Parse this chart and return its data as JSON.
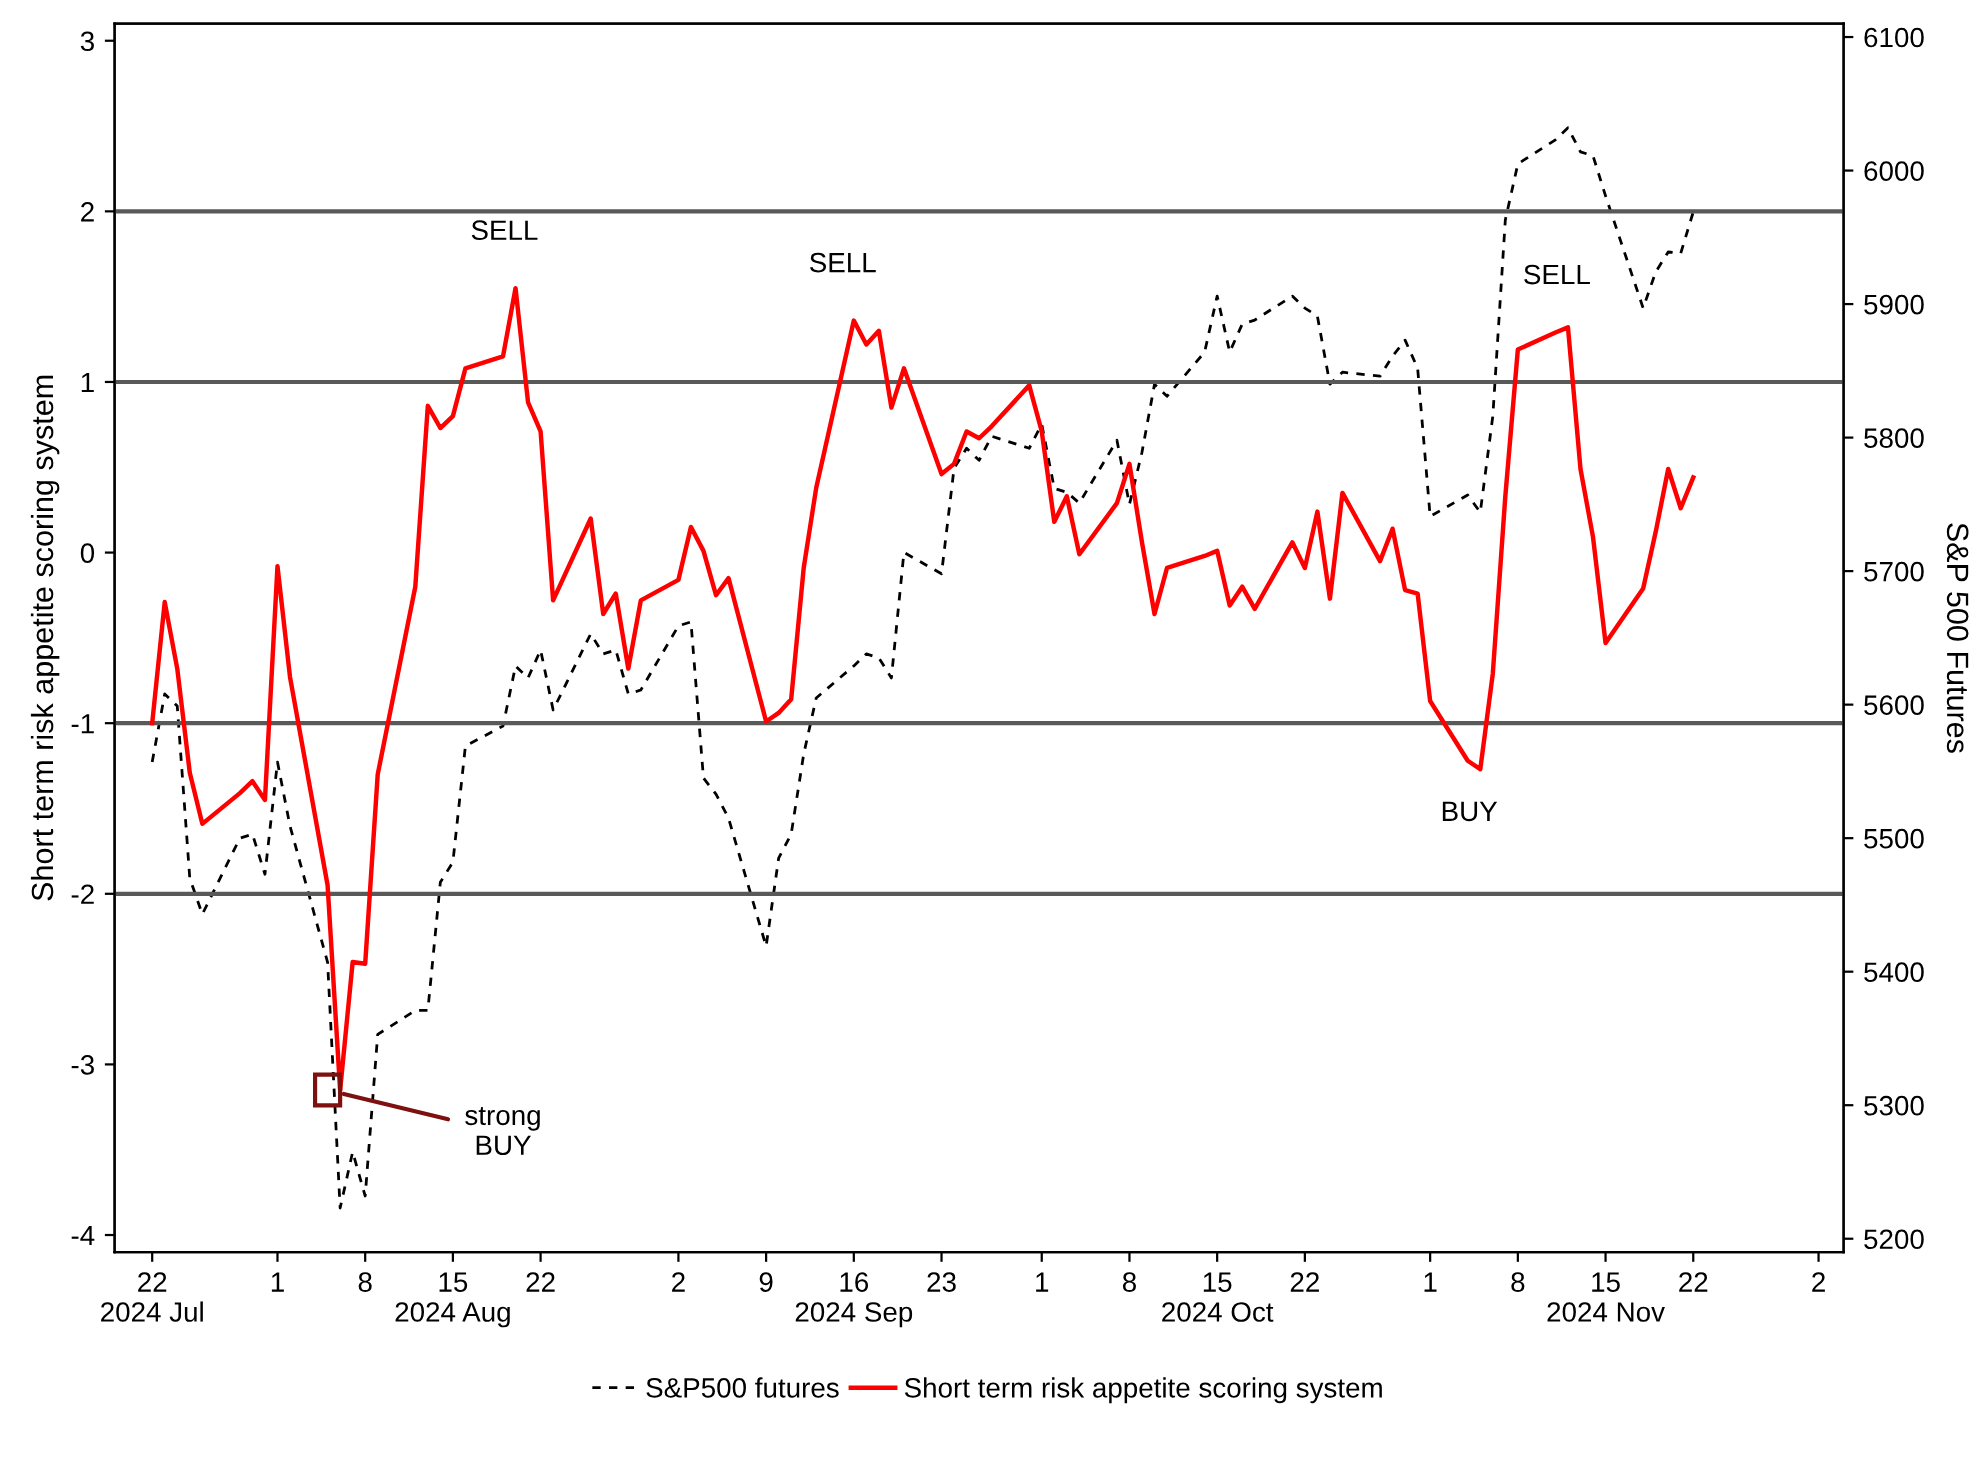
{
  "chart_data": {
    "type": "line",
    "ylabel": "Short term risk appetite scoring system",
    "y2label": "S&P 500 Futures",
    "x": [
      "2024-07-22",
      "2024-07-23",
      "2024-07-24",
      "2024-07-25",
      "2024-07-26",
      "2024-07-29",
      "2024-07-30",
      "2024-07-31",
      "2024-08-01",
      "2024-08-02",
      "2024-08-05",
      "2024-08-06",
      "2024-08-07",
      "2024-08-08",
      "2024-08-09",
      "2024-08-12",
      "2024-08-13",
      "2024-08-14",
      "2024-08-15",
      "2024-08-16",
      "2024-08-19",
      "2024-08-20",
      "2024-08-21",
      "2024-08-22",
      "2024-08-23",
      "2024-08-26",
      "2024-08-27",
      "2024-08-28",
      "2024-08-29",
      "2024-08-30",
      "2024-09-02",
      "2024-09-03",
      "2024-09-04",
      "2024-09-05",
      "2024-09-06",
      "2024-09-09",
      "2024-09-10",
      "2024-09-11",
      "2024-09-12",
      "2024-09-13",
      "2024-09-16",
      "2024-09-17",
      "2024-09-18",
      "2024-09-19",
      "2024-09-20",
      "2024-09-23",
      "2024-09-24",
      "2024-09-25",
      "2024-09-26",
      "2024-09-27",
      "2024-09-30",
      "2024-10-01",
      "2024-10-02",
      "2024-10-03",
      "2024-10-04",
      "2024-10-07",
      "2024-10-08",
      "2024-10-09",
      "2024-10-10",
      "2024-10-11",
      "2024-10-14",
      "2024-10-15",
      "2024-10-16",
      "2024-10-17",
      "2024-10-18",
      "2024-10-21",
      "2024-10-22",
      "2024-10-23",
      "2024-10-24",
      "2024-10-25",
      "2024-10-28",
      "2024-10-29",
      "2024-10-30",
      "2024-10-31",
      "2024-11-01",
      "2024-11-04",
      "2024-11-05",
      "2024-11-06",
      "2024-11-07",
      "2024-11-08",
      "2024-11-11",
      "2024-11-12",
      "2024-11-13",
      "2024-11-14",
      "2024-11-15",
      "2024-11-18",
      "2024-11-19",
      "2024-11-20",
      "2024-11-21",
      "2024-11-22"
    ],
    "series": [
      {
        "name": "S&P500 futures",
        "color": "#000000",
        "axis": "y2",
        "line_style": "dashed",
        "values": [
          5557,
          5608,
          5599,
          5470,
          5443,
          5500,
          5503,
          5473,
          5557,
          5509,
          5407,
          5223,
          5265,
          5232,
          5353,
          5371,
          5371,
          5467,
          5482,
          5569,
          5584,
          5629,
          5620,
          5641,
          5596,
          5653,
          5638,
          5641,
          5608,
          5611,
          5659,
          5662,
          5545,
          5533,
          5515,
          5419,
          5485,
          5503,
          5563,
          5605,
          5629,
          5638,
          5635,
          5620,
          5714,
          5698,
          5777,
          5792,
          5783,
          5801,
          5792,
          5810,
          5762,
          5759,
          5751,
          5798,
          5750,
          5789,
          5840,
          5831,
          5864,
          5906,
          5864,
          5885,
          5888,
          5906,
          5897,
          5891,
          5840,
          5849,
          5846,
          5861,
          5873,
          5852,
          5741,
          5757,
          5744,
          5816,
          5963,
          6005,
          6023,
          6032,
          6014,
          6011,
          5981,
          5897,
          5924,
          5939,
          5938,
          5969
        ]
      },
      {
        "name": "Short term risk appetite scoring system",
        "color": "#ff0000",
        "axis": "y",
        "line_style": "solid",
        "values": [
          -1.0,
          -0.29,
          -0.68,
          -1.29,
          -1.59,
          -1.41,
          -1.34,
          -1.45,
          -0.08,
          -0.73,
          -1.95,
          -3.15,
          -2.4,
          -2.41,
          -1.3,
          -0.2,
          0.86,
          0.73,
          0.8,
          1.08,
          1.15,
          1.55,
          0.88,
          0.71,
          -0.28,
          0.2,
          -0.36,
          -0.24,
          -0.68,
          -0.28,
          -0.16,
          0.15,
          0.01,
          -0.25,
          -0.15,
          -0.99,
          -0.94,
          -0.86,
          -0.09,
          0.38,
          1.36,
          1.22,
          1.3,
          0.85,
          1.08,
          0.46,
          0.52,
          0.71,
          0.67,
          0.74,
          0.98,
          0.71,
          0.18,
          0.33,
          -0.01,
          0.29,
          0.52,
          0.06,
          -0.36,
          -0.09,
          -0.02,
          0.01,
          -0.31,
          -0.2,
          -0.33,
          0.06,
          -0.09,
          0.24,
          -0.27,
          0.35,
          -0.05,
          0.14,
          -0.22,
          -0.24,
          -0.87,
          -1.22,
          -1.27,
          -0.71,
          0.33,
          1.19,
          1.29,
          1.32,
          0.49,
          0.09,
          -0.53,
          -0.21,
          0.12,
          0.49,
          0.26,
          0.44
        ]
      }
    ],
    "xlim": [
      "2024-07-19",
      "2024-12-04"
    ],
    "xticks": [
      {
        "value": "2024-07-22",
        "label": "22\n2024 Jul"
      },
      {
        "value": "2024-08-01",
        "label": "1"
      },
      {
        "value": "2024-08-08",
        "label": "8"
      },
      {
        "value": "2024-08-15",
        "label": "15\n2024 Aug"
      },
      {
        "value": "2024-08-22",
        "label": "22"
      },
      {
        "value": "2024-09-02",
        "label": "2"
      },
      {
        "value": "2024-09-09",
        "label": "9"
      },
      {
        "value": "2024-09-16",
        "label": "16\n2024 Sep"
      },
      {
        "value": "2024-09-23",
        "label": "23"
      },
      {
        "value": "2024-10-01",
        "label": "1"
      },
      {
        "value": "2024-10-08",
        "label": "8"
      },
      {
        "value": "2024-10-15",
        "label": "15\n2024 Oct"
      },
      {
        "value": "2024-10-22",
        "label": "22"
      },
      {
        "value": "2024-11-01",
        "label": "1"
      },
      {
        "value": "2024-11-08",
        "label": "8"
      },
      {
        "value": "2024-11-15",
        "label": "15\n2024 Nov"
      },
      {
        "value": "2024-11-22",
        "label": "22"
      },
      {
        "value": "2024-12-02",
        "label": "2"
      }
    ],
    "ylim": [
      -4.1,
      3.1
    ],
    "yticks": [
      -4,
      -3,
      -2,
      -1,
      0,
      1,
      2,
      3
    ],
    "y2lim": [
      5190,
      6110
    ],
    "y2ticks": [
      5200,
      5300,
      5400,
      5500,
      5600,
      5700,
      5800,
      5900,
      6000,
      6100
    ],
    "ref_lines": [
      {
        "axis": "y",
        "value": 2,
        "color": "#595959"
      },
      {
        "axis": "y",
        "value": 1,
        "color": "#595959"
      },
      {
        "axis": "y",
        "value": -1,
        "color": "#595959"
      },
      {
        "axis": "y",
        "value": -2,
        "color": "#595959"
      }
    ],
    "annotations": [
      {
        "text": "SELL",
        "x": "2024-08-20",
        "y": 1.55
      },
      {
        "text": "SELL",
        "x": "2024-09-16",
        "y": 1.36
      },
      {
        "text": "SELL",
        "x": "2024-11-12",
        "y": 1.29
      },
      {
        "text": "BUY",
        "x": "2024-11-05",
        "y": -1.27
      },
      {
        "text": "strong\nBUY",
        "x": "2024-08-05",
        "y": -3.15
      }
    ],
    "marker": "none",
    "grid": false,
    "legend": "bottom"
  }
}
